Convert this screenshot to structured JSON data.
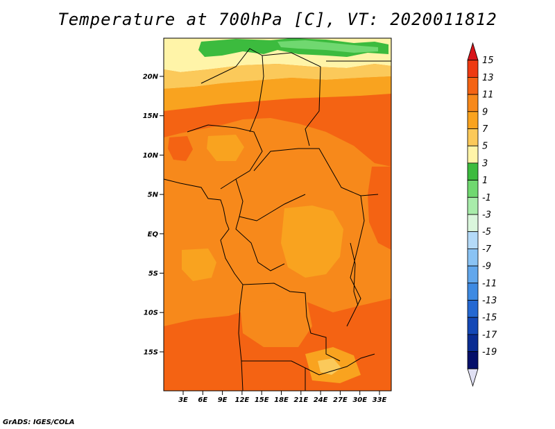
{
  "title": "Temperature at 700hPa [C], VT: 2020011812",
  "credit": "GrADS: IGES/COLA",
  "lat_ticks": [
    "20N",
    "15N",
    "10N",
    "5N",
    "EQ",
    "5S",
    "10S",
    "15S"
  ],
  "lon_ticks": [
    "3E",
    "6E",
    "9E",
    "12E",
    "15E",
    "18E",
    "21E",
    "24E",
    "27E",
    "30E",
    "33E"
  ],
  "colorbar": {
    "labels": [
      "15",
      "13",
      "11",
      "9",
      "7",
      "5",
      "3",
      "1",
      "-1",
      "-3",
      "-5",
      "-7",
      "-9",
      "-11",
      "-13",
      "-15",
      "-17",
      "-19"
    ],
    "colors": [
      "#d8141a",
      "#ee3a12",
      "#f46313",
      "#f7891b",
      "#f9a31f",
      "#fbc95a",
      "#fff4a8",
      "#3cbb3e",
      "#70d870",
      "#a8ecaa",
      "#daf6dc",
      "#b4daf8",
      "#8ac3f4",
      "#62a7ec",
      "#3e8ae2",
      "#2468d2",
      "#1448b6",
      "#0a2c92",
      "#05106a",
      "#e0e0f4"
    ]
  },
  "colors": {
    "warm_fill": "#f7891b",
    "light_fill": "#f9a31f",
    "hot_fill": "#f46313",
    "green_fill": "#3cbb3e"
  }
}
